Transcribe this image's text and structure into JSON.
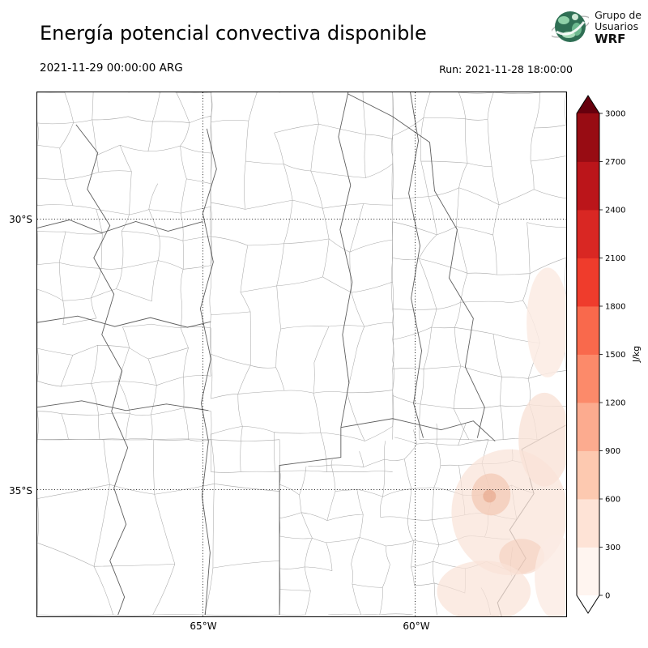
{
  "header": {
    "title": "Energía potencial convectiva disponible",
    "logo": {
      "org_line1": "Grupo de",
      "org_line2": "Usuarios",
      "org_line3": "WRF"
    }
  },
  "subheader": {
    "valid_time": "2021-11-29 00:00:00 ARG",
    "run_time": "Run: 2021-11-28 18:00:00"
  },
  "map_axes": {
    "lat_ticks": [
      {
        "label": "30°S"
      },
      {
        "label": "35°S"
      }
    ],
    "lon_ticks": [
      {
        "label": "65°W"
      },
      {
        "label": "60°W"
      }
    ]
  },
  "colorbar": {
    "label": "J/kg",
    "min": 0,
    "max": 3000,
    "ticks": [
      0,
      300,
      600,
      900,
      1200,
      1500,
      1800,
      2100,
      2400,
      2700,
      3000
    ],
    "segment_colors": [
      "#fff5f0",
      "#fee3d6",
      "#fdc9b0",
      "#fcab8f",
      "#fc8a6a",
      "#f9694c",
      "#ef3c2c",
      "#d92723",
      "#bb151a",
      "#980c13"
    ],
    "over_color": "#67000d",
    "under_color": "#ffffff"
  },
  "chart_data": {
    "type": "heatmap",
    "title": "Energía potencial convectiva disponible",
    "units": "J/kg",
    "levels": [
      0,
      300,
      600,
      900,
      1200,
      1500,
      1800,
      2100,
      2400,
      2700,
      3000
    ],
    "level_colors": [
      "#fff5f0",
      "#fee3d6",
      "#fdc9b0",
      "#fcab8f",
      "#fc8a6a",
      "#f9694c",
      "#ef3c2c",
      "#d92723",
      "#bb151a",
      "#980c13"
    ],
    "lat_gridlines": [
      "30°S",
      "35°S"
    ],
    "lon_gridlines": [
      "65°W",
      "60°W"
    ],
    "shaded_region": "southeast of domain (eastern Buenos Aires / Río de la Plata coast)",
    "shaded_value_range": [
      0,
      600
    ],
    "legend_position": "right"
  }
}
